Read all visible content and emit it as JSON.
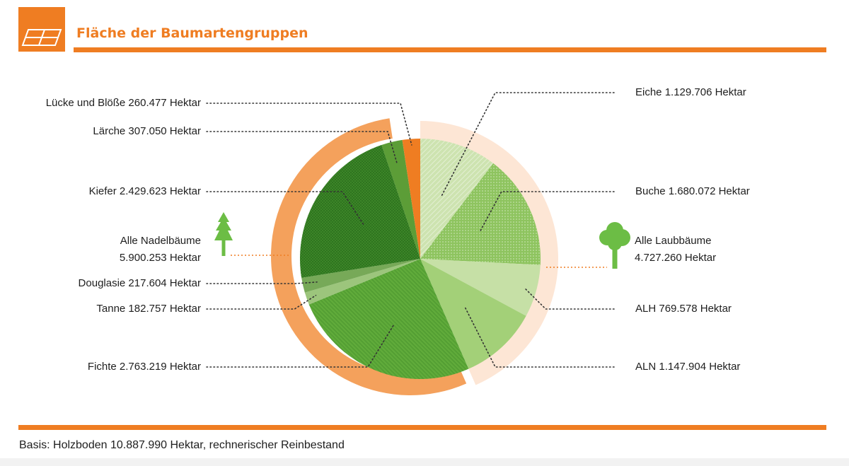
{
  "header": {
    "title": "Fläche der Baumartengruppen",
    "icon": "forest-plot-icon",
    "accent_color": "#ef7d22"
  },
  "footnote": "Basis: Holzboden 10.887.990 Hektar, rechnerischer Reinbestand",
  "chart_data": {
    "type": "pie",
    "title": "Fläche der Baumartengruppen",
    "unit": "Hektar",
    "total": 10887990,
    "slices": [
      {
        "label": "Eiche 1.129.706 Hektar",
        "name": "Eiche",
        "value": 1129706,
        "color": "#cde3b0",
        "pattern": "fine-hatch"
      },
      {
        "label": "Buche 1.680.072 Hektar",
        "name": "Buche",
        "value": 1680072,
        "color": "#8ec45f",
        "pattern": "dots"
      },
      {
        "label": "ALH 769.578 Hektar",
        "name": "ALH",
        "value": 769578,
        "color": "#c6e0a6",
        "pattern": "none"
      },
      {
        "label": "ALN 1.147.904 Hektar",
        "name": "ALN",
        "value": 1147904,
        "color": "#a3d078",
        "pattern": "none"
      },
      {
        "label": "Fichte 2.763.219 Hektar",
        "name": "Fichte",
        "value": 2763219,
        "color": "#5faa3a",
        "pattern": "diagonal"
      },
      {
        "label": "Tanne 182.757 Hektar",
        "name": "Tanne",
        "value": 182757,
        "color": "#9cc57c",
        "pattern": "none"
      },
      {
        "label": "Douglasie 217.604 Hektar",
        "name": "Douglasie",
        "value": 217604,
        "color": "#77a958",
        "pattern": "none"
      },
      {
        "label": "Kiefer 2.429.623 Hektar",
        "name": "Kiefer",
        "value": 2429623,
        "color": "#3f8a2a",
        "pattern": "crosshatch"
      },
      {
        "label": "Lärche 307.050 Hektar",
        "name": "Lärche",
        "value": 307050,
        "color": "#5c9d37",
        "pattern": "none"
      },
      {
        "label": "Lücke und Blöße 260.477 Hektar",
        "name": "Lücke und Blöße",
        "value": 260477,
        "color": "#ef7d22",
        "pattern": "none"
      }
    ],
    "groups": [
      {
        "label_line1": "Alle Nadelbäume",
        "label_line2": "5.900.253 Hektar",
        "name": "Alle Nadelbäume",
        "value": 5900253,
        "ring_color": "#f4a15c",
        "icon": "conifer-tree-icon"
      },
      {
        "label_line1": "Alle Laubbäume",
        "label_line2": "4.727.260 Hektar",
        "name": "Alle Laubbäume",
        "value": 4727260,
        "ring_color": "#fde6d5",
        "icon": "deciduous-tree-icon"
      }
    ],
    "legend": "none",
    "grid": false
  }
}
